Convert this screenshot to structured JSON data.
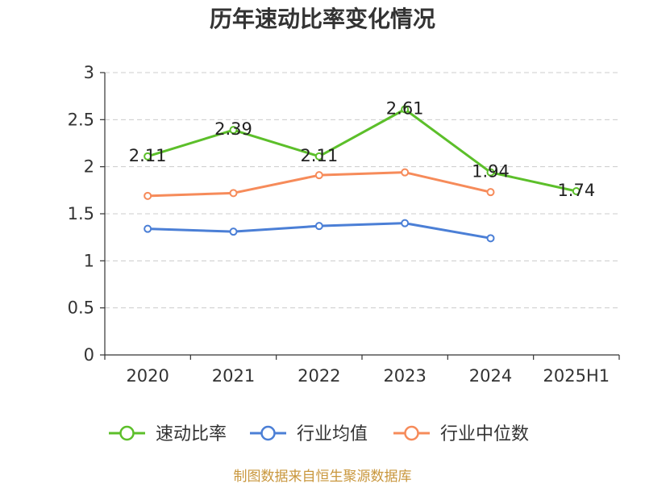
{
  "chart_data": {
    "type": "line",
    "title": "历年速动比率变化情况",
    "categories": [
      "2020",
      "2021",
      "2022",
      "2023",
      "2024",
      "2025H1"
    ],
    "series": [
      {
        "name": "速动比率",
        "color": "#5cbf2a",
        "values": [
          2.11,
          2.39,
          2.11,
          2.61,
          1.94,
          1.74
        ],
        "show_labels": true
      },
      {
        "name": "行业均值",
        "color": "#4b7fd6",
        "values": [
          1.34,
          1.31,
          1.37,
          1.4,
          1.24,
          null
        ],
        "show_labels": false
      },
      {
        "name": "行业中位数",
        "color": "#f68b5a",
        "values": [
          1.69,
          1.72,
          1.91,
          1.94,
          1.73,
          null
        ],
        "show_labels": false
      }
    ],
    "ylim": [
      0,
      3
    ],
    "yticks": [
      0,
      0.5,
      1,
      1.5,
      2,
      2.5,
      3
    ],
    "grid": "horizontal dashed",
    "legend": "bottom",
    "source": "制图数据来自恒生聚源数据库"
  }
}
